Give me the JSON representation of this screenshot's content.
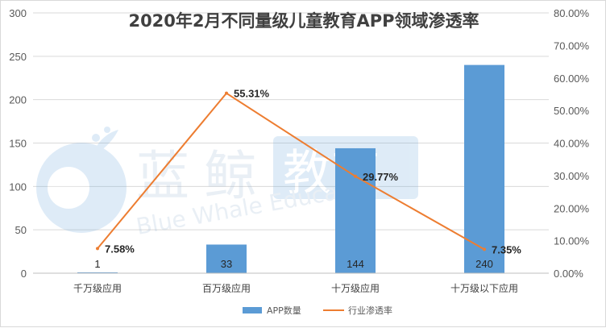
{
  "chart_data": {
    "type": "bar",
    "title": "2020年2月不同量级儿童教育APP领域渗透率",
    "categories": [
      "千万级应用",
      "百万级应用",
      "十万级应用",
      "十万级以下应用"
    ],
    "series": [
      {
        "name": "APP数量",
        "type": "bar",
        "axis": "left",
        "values": [
          1,
          33,
          144,
          240
        ],
        "labels": [
          "1",
          "33",
          "144",
          "240"
        ]
      },
      {
        "name": "行业渗透率",
        "type": "line",
        "axis": "right",
        "values": [
          7.58,
          55.31,
          29.77,
          7.35
        ],
        "labels": [
          "7.58%",
          "55.31%",
          "29.77%",
          "7.35%"
        ]
      }
    ],
    "y_left": {
      "ylim": [
        0,
        300
      ],
      "ticks": [
        "0",
        "50",
        "100",
        "150",
        "200",
        "250",
        "300"
      ]
    },
    "y_right": {
      "ylim": [
        0,
        80
      ],
      "ticks": [
        "0.00%",
        "10.00%",
        "20.00%",
        "30.00%",
        "40.00%",
        "50.00%",
        "60.00%",
        "70.00%",
        "80.00%"
      ]
    },
    "grid": true,
    "legend": "bottom",
    "colors": {
      "bar": "#5b9bd5",
      "line": "#ed7d31"
    }
  },
  "watermark": {
    "cn_1": "蓝",
    "cn_2": "鲸",
    "cn_box": "教育",
    "en": "Blue Whale Education"
  }
}
